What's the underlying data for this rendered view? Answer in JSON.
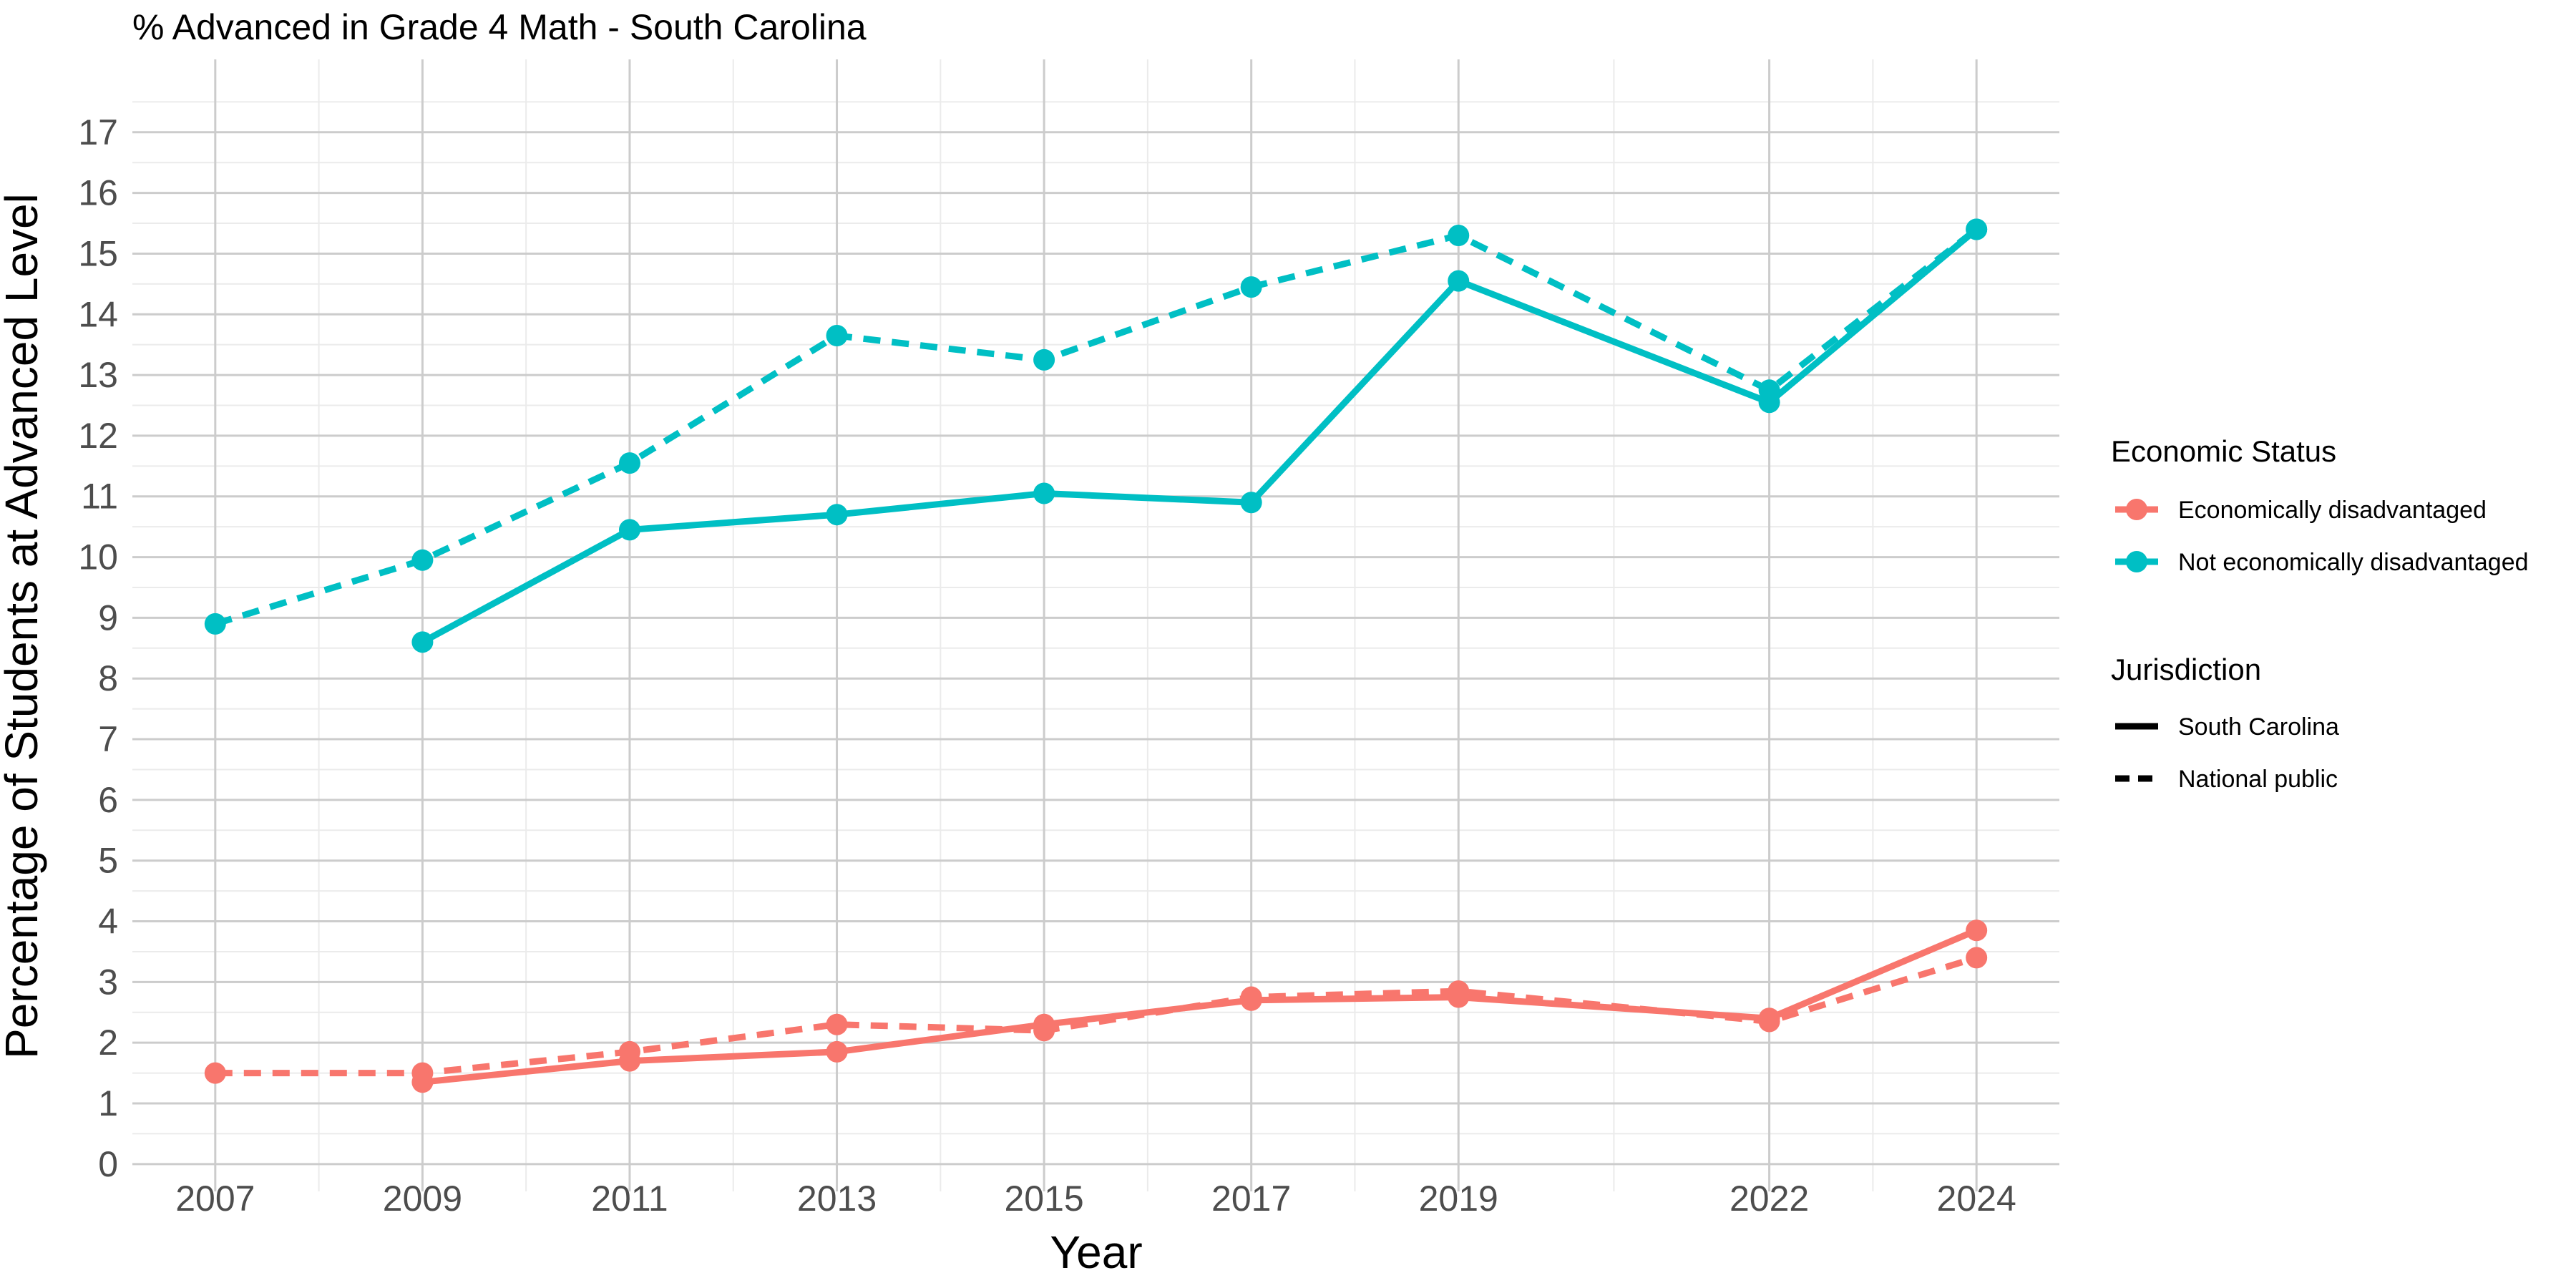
{
  "chart_data": {
    "type": "line",
    "title": "% Advanced in Grade 4 Math - South Carolina",
    "xlabel": "Year",
    "ylabel": "Percentage of Students at Advanced Level",
    "x": [
      2007,
      2009,
      2011,
      2013,
      2015,
      2017,
      2019,
      2022,
      2024
    ],
    "x_ticks": [
      "2007",
      "2009",
      "2011",
      "2013",
      "2015",
      "2017",
      "2019",
      "2022",
      "2024"
    ],
    "y_ticks": [
      "0",
      "1",
      "2",
      "3",
      "4",
      "5",
      "6",
      "7",
      "8",
      "9",
      "10",
      "11",
      "12",
      "13",
      "14",
      "15",
      "16",
      "17"
    ],
    "xlim": [
      2006.2,
      2024.8
    ],
    "ylim": [
      -0.45,
      18.2
    ],
    "grid": true,
    "legend_position": "right",
    "colors": {
      "Economically disadvantaged": "#F8766D",
      "Not economically disadvantaged": "#00BFC4"
    },
    "legend": {
      "color_title": "Economic Status",
      "color_items": [
        "Economically disadvantaged",
        "Not economically disadvantaged"
      ],
      "linetype_title": "Jurisdiction",
      "linetype_items": [
        {
          "label": "South Carolina",
          "dash": "solid"
        },
        {
          "label": "National public",
          "dash": "dashed"
        }
      ]
    },
    "series": [
      {
        "color_group": "Not economically disadvantaged",
        "jurisdiction": "National public",
        "dash": "dashed",
        "x": [
          2007,
          2009,
          2011,
          2013,
          2015,
          2017,
          2019,
          2022,
          2024
        ],
        "values": [
          8.9,
          9.95,
          11.55,
          13.65,
          13.25,
          14.45,
          15.3,
          12.75,
          15.4
        ]
      },
      {
        "color_group": "Not economically disadvantaged",
        "jurisdiction": "South Carolina",
        "dash": "solid",
        "x": [
          2009,
          2011,
          2013,
          2015,
          2017,
          2019,
          2022,
          2024
        ],
        "values": [
          8.6,
          10.45,
          10.7,
          11.05,
          10.9,
          14.55,
          12.55,
          15.4
        ]
      },
      {
        "color_group": "Economically disadvantaged",
        "jurisdiction": "National public",
        "dash": "dashed",
        "x": [
          2007,
          2009,
          2011,
          2013,
          2015,
          2017,
          2019,
          2022,
          2024
        ],
        "values": [
          1.5,
          1.5,
          1.85,
          2.3,
          2.2,
          2.75,
          2.85,
          2.35,
          3.4
        ]
      },
      {
        "color_group": "Economically disadvantaged",
        "jurisdiction": "South Carolina",
        "dash": "solid",
        "x": [
          2009,
          2011,
          2013,
          2015,
          2017,
          2019,
          2022,
          2024
        ],
        "values": [
          1.35,
          1.7,
          1.85,
          2.3,
          2.7,
          2.75,
          2.4,
          3.85
        ]
      }
    ]
  }
}
